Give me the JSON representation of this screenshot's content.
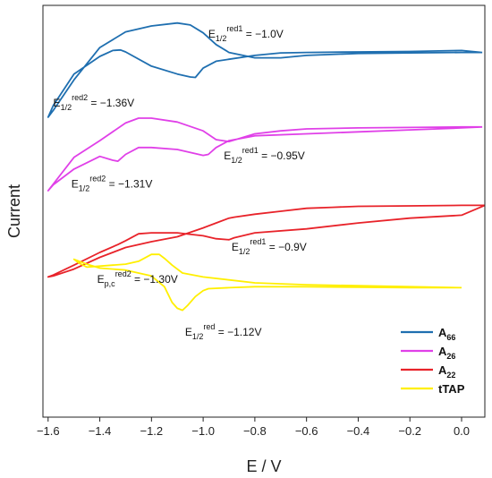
{
  "chart_data": {
    "type": "line",
    "xlabel": "E / V",
    "ylabel": "Current",
    "xlim": [
      -1.62,
      0.09
    ],
    "xticks": [
      "-1.6",
      "-1.4",
      "-1.2",
      "-1.0",
      "-0.8",
      "-0.6",
      "-0.4",
      "-0.2",
      "0.0"
    ],
    "xtick_values": [
      -1.6,
      -1.4,
      -1.2,
      -1.0,
      -0.8,
      -0.6,
      -0.4,
      -0.2,
      0.0
    ],
    "y_ticks_shown": false,
    "legend_position": "bottom-right",
    "series": [
      {
        "name": "A66",
        "label_main": "A",
        "label_sub": "66",
        "color": "#1f6fb0",
        "x": [
          0.08,
          0.0,
          -0.2,
          -0.4,
          -0.6,
          -0.7,
          -0.8,
          -0.9,
          -0.95,
          -1.0,
          -1.05,
          -1.1,
          -1.2,
          -1.3,
          -1.4,
          -1.5,
          -1.58,
          -1.6,
          -1.58,
          -1.5,
          -1.4,
          -1.35,
          -1.32,
          -1.3,
          -1.2,
          -1.1,
          -1.05,
          -1.03,
          -1.0,
          -0.95,
          -0.9,
          -0.8,
          -0.7,
          -0.6,
          -0.4,
          -0.2,
          0.0,
          0.08
        ],
        "y": [
          2.33,
          2.33,
          2.335,
          2.34,
          2.36,
          2.385,
          2.385,
          2.33,
          2.25,
          2.13,
          2.05,
          2.03,
          2.06,
          2.12,
          2.28,
          2.61,
          2.92,
          2.99,
          2.87,
          2.55,
          2.37,
          2.31,
          2.305,
          2.325,
          2.47,
          2.55,
          2.58,
          2.585,
          2.49,
          2.42,
          2.4,
          2.36,
          2.335,
          2.33,
          2.325,
          2.32,
          2.31,
          2.33
        ]
      },
      {
        "name": "A26",
        "label_main": "A",
        "label_sub": "26",
        "color": "#e040e8",
        "x": [
          0.08,
          0.0,
          -0.2,
          -0.4,
          -0.6,
          -0.7,
          -0.8,
          -0.85,
          -0.9,
          -0.95,
          -1.0,
          -1.1,
          -1.2,
          -1.25,
          -1.3,
          -1.4,
          -1.5,
          -1.6,
          -1.58,
          -1.5,
          -1.4,
          -1.35,
          -1.33,
          -1.3,
          -1.25,
          -1.2,
          -1.1,
          -1.0,
          -0.98,
          -0.95,
          -0.9,
          -0.8,
          -0.6,
          -0.4,
          -0.2,
          0.0,
          0.08
        ],
        "y": [
          3.09,
          3.09,
          3.095,
          3.1,
          3.11,
          3.13,
          3.16,
          3.2,
          3.24,
          3.22,
          3.13,
          3.04,
          3.0,
          3.0,
          3.05,
          3.23,
          3.4,
          3.74,
          3.68,
          3.52,
          3.39,
          3.43,
          3.44,
          3.37,
          3.3,
          3.3,
          3.32,
          3.38,
          3.37,
          3.3,
          3.23,
          3.18,
          3.16,
          3.14,
          3.12,
          3.1,
          3.09
        ]
      },
      {
        "name": "A22",
        "label_main": "A",
        "label_sub": "22",
        "color": "#e8232a",
        "x": [
          0.09,
          0.0,
          -0.2,
          -0.4,
          -0.5,
          -0.6,
          -0.7,
          -0.8,
          -0.88,
          -0.9,
          -0.95,
          -1.0,
          -1.1,
          -1.2,
          -1.3,
          -1.4,
          -1.5,
          -1.58,
          -1.6,
          -1.58,
          -1.5,
          -1.4,
          -1.33,
          -1.3,
          -1.25,
          -1.2,
          -1.1,
          -1.0,
          -0.95,
          -0.9,
          -0.88,
          -0.8,
          -0.6,
          -0.4,
          -0.2,
          0.0,
          0.09
        ],
        "y": [
          3.89,
          3.89,
          3.895,
          3.9,
          3.91,
          3.92,
          3.95,
          3.98,
          4.01,
          4.02,
          4.07,
          4.12,
          4.21,
          4.26,
          4.32,
          4.42,
          4.54,
          4.61,
          4.62,
          4.6,
          4.5,
          4.37,
          4.29,
          4.25,
          4.18,
          4.17,
          4.17,
          4.2,
          4.23,
          4.24,
          4.22,
          4.17,
          4.13,
          4.07,
          4.02,
          3.99,
          3.89
        ]
      },
      {
        "name": "tTAP",
        "label_main": "tTAP",
        "label_sub": "",
        "color": "#ffef00",
        "x": [
          0.0,
          -0.2,
          -0.4,
          -0.6,
          -0.7,
          -0.8,
          -0.9,
          -0.98,
          -1.0,
          -1.03,
          -1.06,
          -1.08,
          -1.1,
          -1.12,
          -1.15,
          -1.2,
          -1.3,
          -1.4,
          -1.45,
          -1.5,
          -1.48,
          -1.45,
          -1.4,
          -1.35,
          -1.3,
          -1.25,
          -1.2,
          -1.17,
          -1.15,
          -1.12,
          -1.08,
          -1.0,
          -0.9,
          -0.8,
          -0.6,
          -0.4,
          -0.2,
          0.0
        ],
        "y": [
          4.73,
          4.73,
          4.725,
          4.72,
          4.72,
          4.72,
          4.73,
          4.74,
          4.76,
          4.82,
          4.91,
          4.96,
          4.94,
          4.88,
          4.72,
          4.61,
          4.55,
          4.53,
          4.49,
          4.44,
          4.48,
          4.52,
          4.51,
          4.5,
          4.49,
          4.46,
          4.39,
          4.39,
          4.43,
          4.5,
          4.58,
          4.62,
          4.65,
          4.68,
          4.7,
          4.71,
          4.72,
          4.73
        ]
      }
    ],
    "annotations": [
      {
        "main": "E",
        "sub": "1/2",
        "sup": "red1",
        "value": " = −1.0V",
        "x": -0.98,
        "y": 2.18
      },
      {
        "main": "E",
        "sub": "1/2",
        "sup": "red2",
        "value": " = −1.36V",
        "x": -1.58,
        "y": 2.88
      },
      {
        "main": "E",
        "sub": "1/2",
        "sup": "red1",
        "value": " = −0.95V",
        "x": -0.92,
        "y": 3.42
      },
      {
        "main": "E",
        "sub": "1/2",
        "sup": "red2",
        "value": " = −1.31V",
        "x": -1.51,
        "y": 3.71
      },
      {
        "main": "E",
        "sub": "1/2",
        "sup": "red1",
        "value": " = −0.9V",
        "x": -0.89,
        "y": 4.35
      },
      {
        "main": "E",
        "sub": "p,c",
        "sup": "red2",
        "value": " = −1.30V",
        "x": -1.41,
        "y": 4.68
      },
      {
        "main": "E",
        "sub": "1/2",
        "sup": "red",
        "value": " = −1.12V",
        "x": -1.07,
        "y": 5.22
      }
    ]
  }
}
